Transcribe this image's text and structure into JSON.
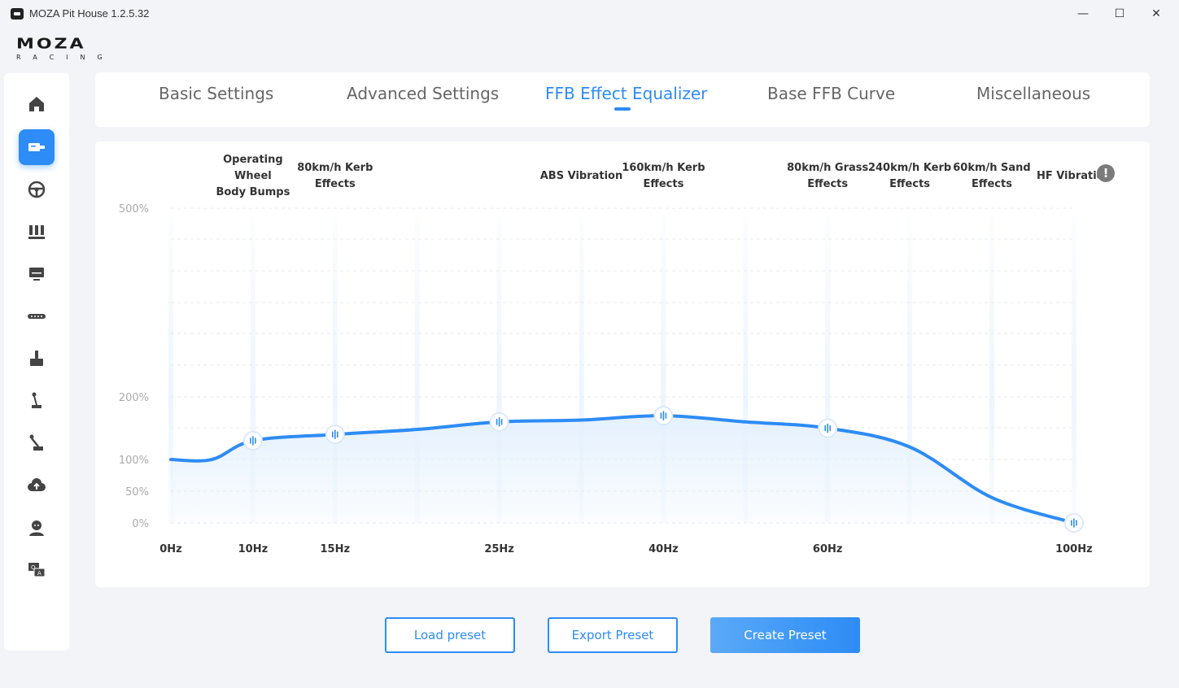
{
  "window": {
    "title": "MOZA Pit House 1.2.5.32",
    "minimize": "—",
    "maximize": "☐",
    "close": "✕"
  },
  "logo": {
    "top": "MOZA",
    "bottom": "RACING"
  },
  "sidebar": {
    "items": [
      {
        "icon": "home-icon",
        "active": false
      },
      {
        "icon": "wheelbase-icon",
        "active": true
      },
      {
        "icon": "steering-wheel-icon",
        "active": false
      },
      {
        "icon": "pedals-icon",
        "active": false
      },
      {
        "icon": "dashboard-display-icon",
        "active": false
      },
      {
        "icon": "led-bar-icon",
        "active": false
      },
      {
        "icon": "handbrake-icon",
        "active": false
      },
      {
        "icon": "shifter-icon",
        "active": false
      },
      {
        "icon": "sequential-shifter-icon",
        "active": false
      },
      {
        "icon": "cloud-upload-icon",
        "active": false
      },
      {
        "icon": "user-icon",
        "active": false
      },
      {
        "icon": "qa-help-icon",
        "active": false
      }
    ]
  },
  "tabs": [
    {
      "label": "Basic Settings",
      "active": false
    },
    {
      "label": "Advanced Settings",
      "active": false
    },
    {
      "label": "FFB Effect Equalizer",
      "active": true
    },
    {
      "label": "Base FFB Curve",
      "active": false
    },
    {
      "label": "Miscellaneous",
      "active": false
    }
  ],
  "chart_data": {
    "type": "line",
    "x_tick_labels": [
      "0Hz",
      "10Hz",
      "15Hz",
      "25Hz",
      "40Hz",
      "60Hz",
      "100Hz"
    ],
    "y_tick_labels": [
      "500%",
      "200%",
      "100%",
      "50%",
      "0%"
    ],
    "y_ticks": [
      500,
      200,
      100,
      50,
      0
    ],
    "band_labels": [
      {
        "band": 1,
        "text": [
          "Operating",
          "Wheel",
          "Body Bumps"
        ]
      },
      {
        "band": 2,
        "text": [
          "80km/h Kerb",
          "Effects"
        ]
      },
      {
        "band": 5,
        "text": [
          "ABS Vibration"
        ]
      },
      {
        "band": 6,
        "text": [
          "160km/h Kerb",
          "Effects"
        ]
      },
      {
        "band": 8,
        "text": [
          "80km/h Grass",
          "Effects"
        ]
      },
      {
        "band": 9,
        "text": [
          "240km/h Kerb",
          "Effects"
        ]
      },
      {
        "band": 10,
        "text": [
          "60km/h Sand",
          "Effects"
        ]
      },
      {
        "band": 11,
        "text": [
          "HF Vibration"
        ]
      }
    ],
    "points": [
      {
        "band": 0,
        "value": 100,
        "handle": false
      },
      {
        "band": 0.5,
        "value": 100,
        "handle": false
      },
      {
        "band": 1,
        "value": 130,
        "handle": true
      },
      {
        "band": 2,
        "value": 140,
        "handle": true
      },
      {
        "band": 3,
        "value": 148,
        "handle": false
      },
      {
        "band": 4,
        "value": 160,
        "handle": true
      },
      {
        "band": 5,
        "value": 163,
        "handle": false
      },
      {
        "band": 6,
        "value": 170,
        "handle": true
      },
      {
        "band": 7,
        "value": 160,
        "handle": false
      },
      {
        "band": 8,
        "value": 150,
        "handle": true
      },
      {
        "band": 9,
        "value": 120,
        "handle": false
      },
      {
        "band": 10,
        "value": 40,
        "handle": false
      },
      {
        "band": 11,
        "value": 0,
        "handle": true
      }
    ],
    "y_range": [
      0,
      500
    ],
    "grid": true,
    "line_color": "#2d8cf5",
    "fill_color": "#e3f0fd"
  },
  "buttons": {
    "load": "Load preset",
    "export": "Export Preset",
    "create": "Create Preset"
  },
  "info": "!"
}
